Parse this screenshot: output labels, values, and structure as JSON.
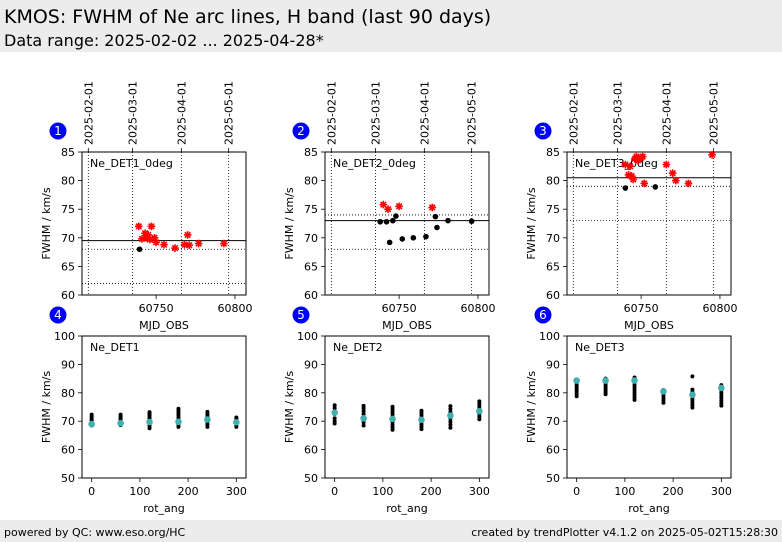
{
  "header": {
    "title": "KMOS: FWHM of Ne arc lines, H band (last 90 days)",
    "subtitle": "Data range: 2025-02-02 ... 2025-04-28*"
  },
  "footer": {
    "left": "powered by QC: www.eso.org/HC",
    "right": "created by trendPlotter v4.1.2 on 2025-05-02T15:28:30"
  },
  "colors": {
    "badge": "#0000ff",
    "trend_point": "#000000",
    "flagged_point": "#ff0000",
    "mean_marker": "#40b0b0"
  },
  "chart_data": [
    {
      "panel": "1",
      "type": "scatter",
      "label": "Ne_DET1_0deg",
      "xlabel": "MJD_OBS",
      "ylabel": "FWHM / km/s",
      "xlim": [
        60703,
        60807
      ],
      "ylim": [
        60,
        85
      ],
      "xticks": [
        60750,
        60800
      ],
      "yticks": [
        60,
        65,
        70,
        75,
        80,
        85
      ],
      "date_ticks": [
        {
          "mjd": 60707,
          "label": "2025-02-01"
        },
        {
          "mjd": 60735,
          "label": "2025-03-01"
        },
        {
          "mjd": 60766,
          "label": "2025-04-01"
        },
        {
          "mjd": 60796,
          "label": "2025-05-01"
        }
      ],
      "hlines": [
        {
          "y": 69.5,
          "style": "solid"
        },
        {
          "y": 68.0,
          "style": "dotted"
        },
        {
          "y": 62.0,
          "style": "dotted"
        }
      ],
      "series": [
        {
          "marker": "dot",
          "x": [
            60739.5
          ],
          "y": [
            68.0
          ]
        },
        {
          "marker": "star",
          "x": [
            60739,
            60741,
            60743,
            60744,
            60745,
            60746,
            60747,
            60749,
            60750,
            60755,
            60762,
            60768,
            60770,
            60771,
            60777,
            60793
          ],
          "y": [
            72.0,
            69.8,
            70.8,
            70.0,
            70.5,
            69.7,
            72.0,
            70.0,
            69.2,
            68.8,
            68.2,
            68.8,
            70.5,
            68.7,
            69.0,
            69.0
          ]
        }
      ]
    },
    {
      "panel": "2",
      "type": "scatter",
      "label": "Ne_DET2_0deg",
      "xlabel": "MJD_OBS",
      "ylabel": "FWHM / km/s",
      "xlim": [
        60703,
        60807
      ],
      "ylim": [
        60,
        85
      ],
      "xticks": [
        60750,
        60800
      ],
      "yticks": [
        60,
        65,
        70,
        75,
        80,
        85
      ],
      "date_ticks": [
        {
          "mjd": 60707,
          "label": "2025-02-01"
        },
        {
          "mjd": 60735,
          "label": "2025-03-01"
        },
        {
          "mjd": 60766,
          "label": "2025-04-01"
        },
        {
          "mjd": 60796,
          "label": "2025-05-01"
        }
      ],
      "hlines": [
        {
          "y": 73.0,
          "style": "solid"
        },
        {
          "y": 74.0,
          "style": "dotted"
        },
        {
          "y": 68.0,
          "style": "dotted"
        }
      ],
      "series": [
        {
          "marker": "dot",
          "x": [
            60738,
            60742,
            60744,
            60746,
            60748,
            60752,
            60759,
            60767,
            60773,
            60774,
            60781,
            60796
          ],
          "y": [
            72.8,
            72.8,
            69.2,
            73.0,
            73.8,
            69.8,
            70.0,
            70.2,
            73.7,
            71.8,
            73.0,
            72.9
          ]
        },
        {
          "marker": "star",
          "x": [
            60740,
            60743,
            60750,
            60771
          ],
          "y": [
            75.8,
            75.0,
            75.5,
            75.3
          ]
        }
      ]
    },
    {
      "panel": "3",
      "type": "scatter",
      "label": "Ne_DET3_0deg",
      "xlabel": "MJD_OBS",
      "ylabel": "FWHM / km/s",
      "xlim": [
        60703,
        60807
      ],
      "ylim": [
        60,
        85
      ],
      "xticks": [
        60750,
        60800
      ],
      "yticks": [
        60,
        65,
        70,
        75,
        80,
        85
      ],
      "date_ticks": [
        {
          "mjd": 60707,
          "label": "2025-02-01"
        },
        {
          "mjd": 60735,
          "label": "2025-03-01"
        },
        {
          "mjd": 60766,
          "label": "2025-04-01"
        },
        {
          "mjd": 60796,
          "label": "2025-05-01"
        }
      ],
      "hlines": [
        {
          "y": 80.5,
          "style": "solid"
        },
        {
          "y": 79.0,
          "style": "dotted"
        },
        {
          "y": 73.0,
          "style": "dotted"
        }
      ],
      "series": [
        {
          "marker": "dot",
          "x": [
            60740,
            60759
          ],
          "y": [
            78.7,
            78.9
          ]
        },
        {
          "marker": "star",
          "x": [
            60740,
            60742,
            60743,
            60744,
            60745,
            60746,
            60747,
            60748,
            60750,
            60751,
            60752,
            60766,
            60770,
            60772,
            60780,
            60795
          ],
          "y": [
            82.8,
            81.0,
            82.5,
            80.8,
            80.2,
            83.8,
            84.2,
            83.5,
            84.0,
            84.2,
            79.5,
            82.8,
            81.3,
            80.0,
            79.5,
            84.5
          ]
        }
      ]
    },
    {
      "panel": "4",
      "type": "scatter",
      "label": "Ne_DET1",
      "xlabel": "rot_ang",
      "ylabel": "FWHM / km/s",
      "xlim": [
        -20,
        320
      ],
      "ylim": [
        50,
        100
      ],
      "xticks": [
        0,
        100,
        200,
        300
      ],
      "yticks": [
        50,
        60,
        70,
        80,
        90,
        100
      ],
      "series": [
        {
          "marker": "dot",
          "x": [
            0,
            0,
            0,
            0,
            0,
            0,
            0,
            60,
            60,
            60,
            60,
            60,
            60,
            60,
            120,
            120,
            120,
            120,
            120,
            120,
            120,
            120,
            120,
            180,
            180,
            180,
            180,
            180,
            180,
            180,
            180,
            180,
            240,
            240,
            240,
            240,
            240,
            240,
            240,
            240,
            300,
            300,
            300,
            300,
            300,
            300,
            300
          ],
          "y": [
            68.5,
            69.2,
            69.8,
            70.4,
            71.0,
            71.6,
            72.3,
            68.6,
            69.3,
            69.9,
            70.5,
            71.1,
            71.7,
            72.3,
            67.5,
            68.4,
            69.2,
            69.9,
            70.6,
            71.3,
            72.0,
            72.6,
            73.2,
            68.0,
            68.8,
            69.6,
            70.4,
            71.2,
            72.0,
            72.8,
            73.6,
            74.4,
            68.0,
            68.8,
            69.6,
            70.4,
            71.1,
            71.8,
            72.5,
            73.3,
            68.0,
            68.6,
            69.2,
            69.8,
            70.3,
            70.8,
            71.3
          ]
        },
        {
          "marker": "mean",
          "x": [
            0,
            60,
            120,
            180,
            240,
            300
          ],
          "y": [
            69.0,
            69.3,
            69.7,
            69.8,
            70.6,
            69.6
          ]
        }
      ]
    },
    {
      "panel": "5",
      "type": "scatter",
      "label": "Ne_DET2",
      "xlabel": "rot_ang",
      "ylabel": "FWHM / km/s",
      "xlim": [
        -20,
        320
      ],
      "ylim": [
        50,
        100
      ],
      "xticks": [
        0,
        100,
        200,
        300
      ],
      "yticks": [
        50,
        60,
        70,
        80,
        90,
        100
      ],
      "series": [
        {
          "marker": "dot",
          "x": [
            0,
            0,
            0,
            0,
            0,
            0,
            0,
            60,
            60,
            60,
            60,
            60,
            60,
            60,
            60,
            120,
            120,
            120,
            120,
            120,
            120,
            120,
            120,
            120,
            120,
            180,
            180,
            180,
            180,
            180,
            180,
            180,
            180,
            180,
            240,
            240,
            240,
            240,
            240,
            240,
            240,
            240,
            300,
            300,
            300,
            300,
            300,
            300,
            300,
            300
          ],
          "y": [
            69.2,
            70.0,
            71.0,
            72.5,
            73.5,
            74.6,
            75.6,
            68.5,
            69.6,
            70.6,
            71.6,
            72.6,
            73.6,
            74.6,
            75.4,
            67.0,
            67.9,
            68.8,
            69.7,
            70.6,
            71.5,
            72.4,
            73.3,
            74.2,
            75.1,
            67.2,
            68.0,
            68.8,
            69.6,
            70.4,
            71.2,
            72.0,
            72.9,
            73.7,
            67.7,
            68.8,
            69.9,
            71.0,
            72.1,
            73.2,
            74.3,
            75.3,
            70.7,
            71.6,
            72.5,
            73.4,
            74.3,
            75.2,
            76.1,
            77.0
          ]
        },
        {
          "marker": "mean",
          "x": [
            0,
            60,
            120,
            180,
            240,
            300
          ],
          "y": [
            73.0,
            71.0,
            70.8,
            70.5,
            72.0,
            73.5
          ]
        }
      ]
    },
    {
      "panel": "6",
      "type": "scatter",
      "label": "Ne_DET3",
      "xlabel": "rot_ang",
      "ylabel": "FWHM / km/s",
      "xlim": [
        -20,
        320
      ],
      "ylim": [
        50,
        100
      ],
      "xticks": [
        0,
        100,
        200,
        300
      ],
      "yticks": [
        50,
        60,
        70,
        80,
        90,
        100
      ],
      "series": [
        {
          "marker": "dot",
          "x": [
            0,
            0,
            0,
            0,
            0,
            0,
            0,
            0,
            60,
            60,
            60,
            60,
            60,
            60,
            60,
            60,
            120,
            120,
            120,
            120,
            120,
            120,
            120,
            120,
            120,
            120,
            180,
            180,
            180,
            180,
            180,
            180,
            240,
            240,
            240,
            240,
            240,
            240,
            240,
            240,
            240,
            300,
            300,
            300,
            300,
            300,
            300,
            300,
            300,
            300
          ],
          "y": [
            78.8,
            79.6,
            80.4,
            81.2,
            82.0,
            82.8,
            83.6,
            84.4,
            79.5,
            80.3,
            81.1,
            81.9,
            82.7,
            83.5,
            84.3,
            85.0,
            77.5,
            78.4,
            79.3,
            80.2,
            81.1,
            82.0,
            82.9,
            83.8,
            84.6,
            85.4,
            76.5,
            77.4,
            78.3,
            79.2,
            80.1,
            81.0,
            74.8,
            75.7,
            76.6,
            77.5,
            78.4,
            79.3,
            80.2,
            81.1,
            85.8,
            75.5,
            76.4,
            77.3,
            78.2,
            79.1,
            80.0,
            80.9,
            81.8,
            82.7
          ]
        },
        {
          "marker": "mean",
          "x": [
            0,
            60,
            120,
            180,
            240,
            300
          ],
          "y": [
            84.3,
            84.3,
            84.3,
            80.5,
            79.3,
            81.7
          ]
        }
      ]
    }
  ]
}
